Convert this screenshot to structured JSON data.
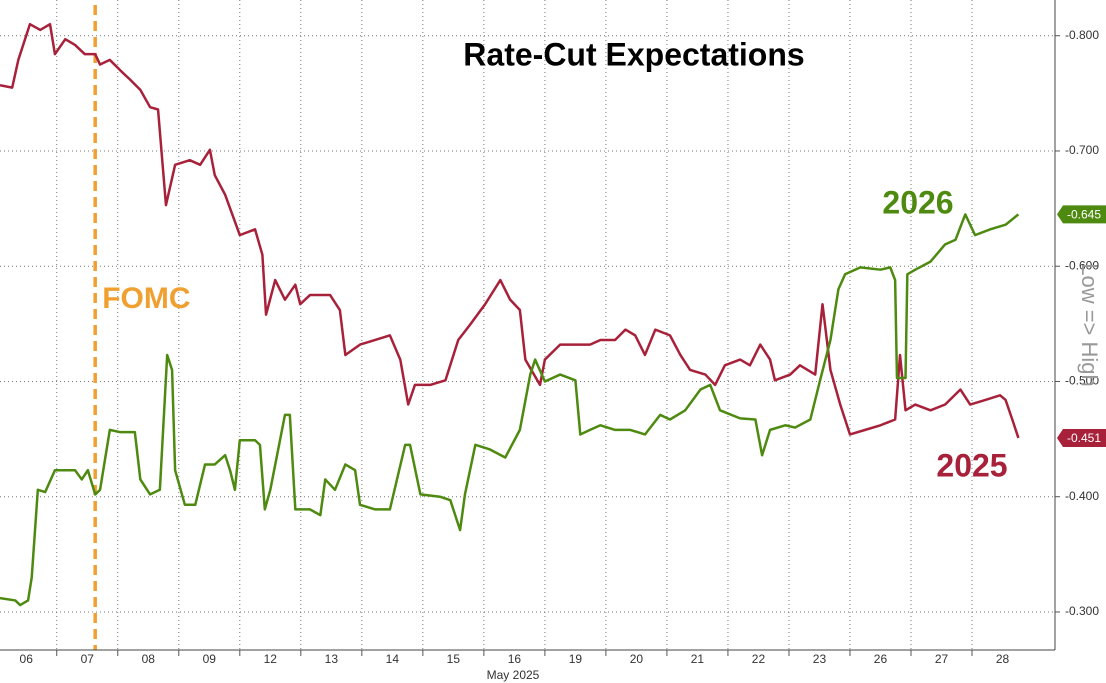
{
  "chart_data": {
    "type": "line",
    "title": "Rate-Cut Expectations",
    "annotation": "FOMC",
    "annotation_x": 1.63,
    "x_label": "May 2025",
    "y_label": "Low => High",
    "categories": [
      "06",
      "07",
      "08",
      "09",
      "12",
      "13",
      "14",
      "15",
      "16",
      "19",
      "20",
      "21",
      "22",
      "23",
      "26",
      "27",
      "28"
    ],
    "xlim": [
      0.07,
      17.36
    ],
    "ylim": [
      -0.267,
      -0.831
    ],
    "yticks": [
      {
        "value": -0.8,
        "label": "-0.800"
      },
      {
        "value": -0.7,
        "label": "-0.700"
      },
      {
        "value": -0.6,
        "label": "-0.600"
      },
      {
        "value": -0.5,
        "label": "-0.500"
      },
      {
        "value": -0.4,
        "label": "-0.400"
      },
      {
        "value": -0.3,
        "label": "-0.300"
      }
    ],
    "grid": true,
    "series": [
      {
        "name": "2025",
        "color": "#a8213a",
        "last_value_label": "-0.451",
        "x": [
          0.07,
          0.27,
          0.37,
          0.56,
          0.73,
          0.89,
          0.97,
          1.14,
          1.3,
          1.46,
          1.63,
          1.71,
          1.87,
          2.04,
          2.2,
          2.37,
          2.53,
          2.66,
          2.79,
          2.94,
          3.18,
          3.35,
          3.51,
          3.59,
          3.76,
          4.0,
          4.25,
          4.37,
          4.43,
          4.58,
          4.74,
          4.91,
          4.99,
          5.15,
          5.48,
          5.64,
          5.73,
          5.97,
          6.22,
          6.46,
          6.63,
          6.76,
          6.87,
          7.12,
          7.37,
          7.58,
          7.77,
          8.02,
          8.27,
          8.43,
          8.59,
          8.68,
          8.92,
          9.0,
          9.25,
          9.5,
          9.74,
          9.91,
          10.15,
          10.32,
          10.48,
          10.64,
          10.81,
          11.05,
          11.22,
          11.38,
          11.63,
          11.79,
          11.95,
          12.2,
          12.36,
          12.53,
          12.69,
          12.77,
          13.02,
          13.18,
          13.43,
          13.55,
          13.68,
          13.84,
          14.0,
          14.25,
          14.5,
          14.74,
          14.82,
          14.91,
          15.07,
          15.32,
          15.56,
          15.81,
          15.97,
          16.22,
          16.46,
          16.55,
          16.66,
          16.76
        ],
        "values": [
          -0.757,
          -0.755,
          -0.779,
          -0.81,
          -0.805,
          -0.81,
          -0.784,
          -0.797,
          -0.792,
          -0.784,
          -0.784,
          -0.775,
          -0.779,
          -0.77,
          -0.762,
          -0.753,
          -0.738,
          -0.736,
          -0.653,
          -0.688,
          -0.692,
          -0.688,
          -0.701,
          -0.679,
          -0.662,
          -0.627,
          -0.632,
          -0.61,
          -0.558,
          -0.588,
          -0.571,
          -0.584,
          -0.567,
          -0.575,
          -0.575,
          -0.562,
          -0.523,
          -0.532,
          -0.536,
          -0.54,
          -0.519,
          -0.48,
          -0.497,
          -0.497,
          -0.501,
          -0.536,
          -0.549,
          -0.567,
          -0.588,
          -0.571,
          -0.562,
          -0.519,
          -0.497,
          -0.519,
          -0.532,
          -0.532,
          -0.532,
          -0.536,
          -0.536,
          -0.545,
          -0.54,
          -0.523,
          -0.545,
          -0.54,
          -0.523,
          -0.51,
          -0.506,
          -0.497,
          -0.514,
          -0.519,
          -0.514,
          -0.532,
          -0.519,
          -0.501,
          -0.506,
          -0.514,
          -0.506,
          -0.567,
          -0.51,
          -0.48,
          -0.454,
          -0.458,
          -0.462,
          -0.467,
          -0.523,
          -0.475,
          -0.48,
          -0.475,
          -0.48,
          -0.493,
          -0.48,
          -0.484,
          -0.488,
          -0.484,
          -0.467,
          -0.451
        ]
      },
      {
        "name": "2026",
        "color": "#4e8a10",
        "last_value_label": "-0.645",
        "x": [
          0.07,
          0.32,
          0.4,
          0.53,
          0.59,
          0.69,
          0.81,
          0.97,
          1.3,
          1.41,
          1.51,
          1.63,
          1.71,
          1.87,
          2.04,
          2.28,
          2.37,
          2.53,
          2.69,
          2.81,
          2.89,
          2.94,
          3.1,
          3.27,
          3.43,
          3.59,
          3.76,
          3.84,
          3.92,
          4.0,
          4.25,
          4.33,
          4.41,
          4.5,
          4.74,
          4.82,
          4.91,
          5.15,
          5.32,
          5.4,
          5.56,
          5.73,
          5.89,
          5.97,
          6.22,
          6.46,
          6.71,
          6.79,
          6.96,
          7.28,
          7.45,
          7.61,
          7.69,
          7.86,
          8.1,
          8.35,
          8.59,
          8.76,
          8.84,
          9.0,
          9.25,
          9.5,
          9.58,
          9.74,
          9.91,
          10.15,
          10.4,
          10.64,
          10.89,
          11.05,
          11.3,
          11.55,
          11.71,
          11.87,
          12.2,
          12.45,
          12.56,
          12.69,
          12.94,
          13.1,
          13.35,
          13.51,
          13.68,
          13.81,
          13.92,
          14.17,
          14.5,
          14.66,
          14.74,
          14.77,
          14.91,
          14.94,
          15.07,
          15.32,
          15.56,
          15.73,
          15.89,
          16.05,
          16.3,
          16.55,
          16.76
        ],
        "values": [
          -0.312,
          -0.31,
          -0.306,
          -0.31,
          -0.33,
          -0.406,
          -0.404,
          -0.423,
          -0.423,
          -0.415,
          -0.423,
          -0.402,
          -0.406,
          -0.458,
          -0.456,
          -0.456,
          -0.415,
          -0.402,
          -0.406,
          -0.523,
          -0.51,
          -0.423,
          -0.393,
          -0.393,
          -0.428,
          -0.428,
          -0.436,
          -0.423,
          -0.406,
          -0.449,
          -0.449,
          -0.445,
          -0.389,
          -0.406,
          -0.471,
          -0.471,
          -0.389,
          -0.389,
          -0.384,
          -0.415,
          -0.406,
          -0.428,
          -0.423,
          -0.393,
          -0.389,
          -0.389,
          -0.445,
          -0.445,
          -0.402,
          -0.4,
          -0.397,
          -0.371,
          -0.402,
          -0.445,
          -0.441,
          -0.434,
          -0.458,
          -0.506,
          -0.519,
          -0.5,
          -0.506,
          -0.501,
          -0.454,
          -0.458,
          -0.462,
          -0.458,
          -0.458,
          -0.454,
          -0.471,
          -0.467,
          -0.475,
          -0.493,
          -0.497,
          -0.475,
          -0.468,
          -0.467,
          -0.436,
          -0.458,
          -0.462,
          -0.46,
          -0.467,
          -0.501,
          -0.536,
          -0.58,
          -0.593,
          -0.599,
          -0.597,
          -0.599,
          -0.588,
          -0.503,
          -0.503,
          -0.593,
          -0.597,
          -0.604,
          -0.619,
          -0.623,
          -0.645,
          -0.627,
          -0.632,
          -0.636,
          -0.645
        ]
      }
    ]
  }
}
